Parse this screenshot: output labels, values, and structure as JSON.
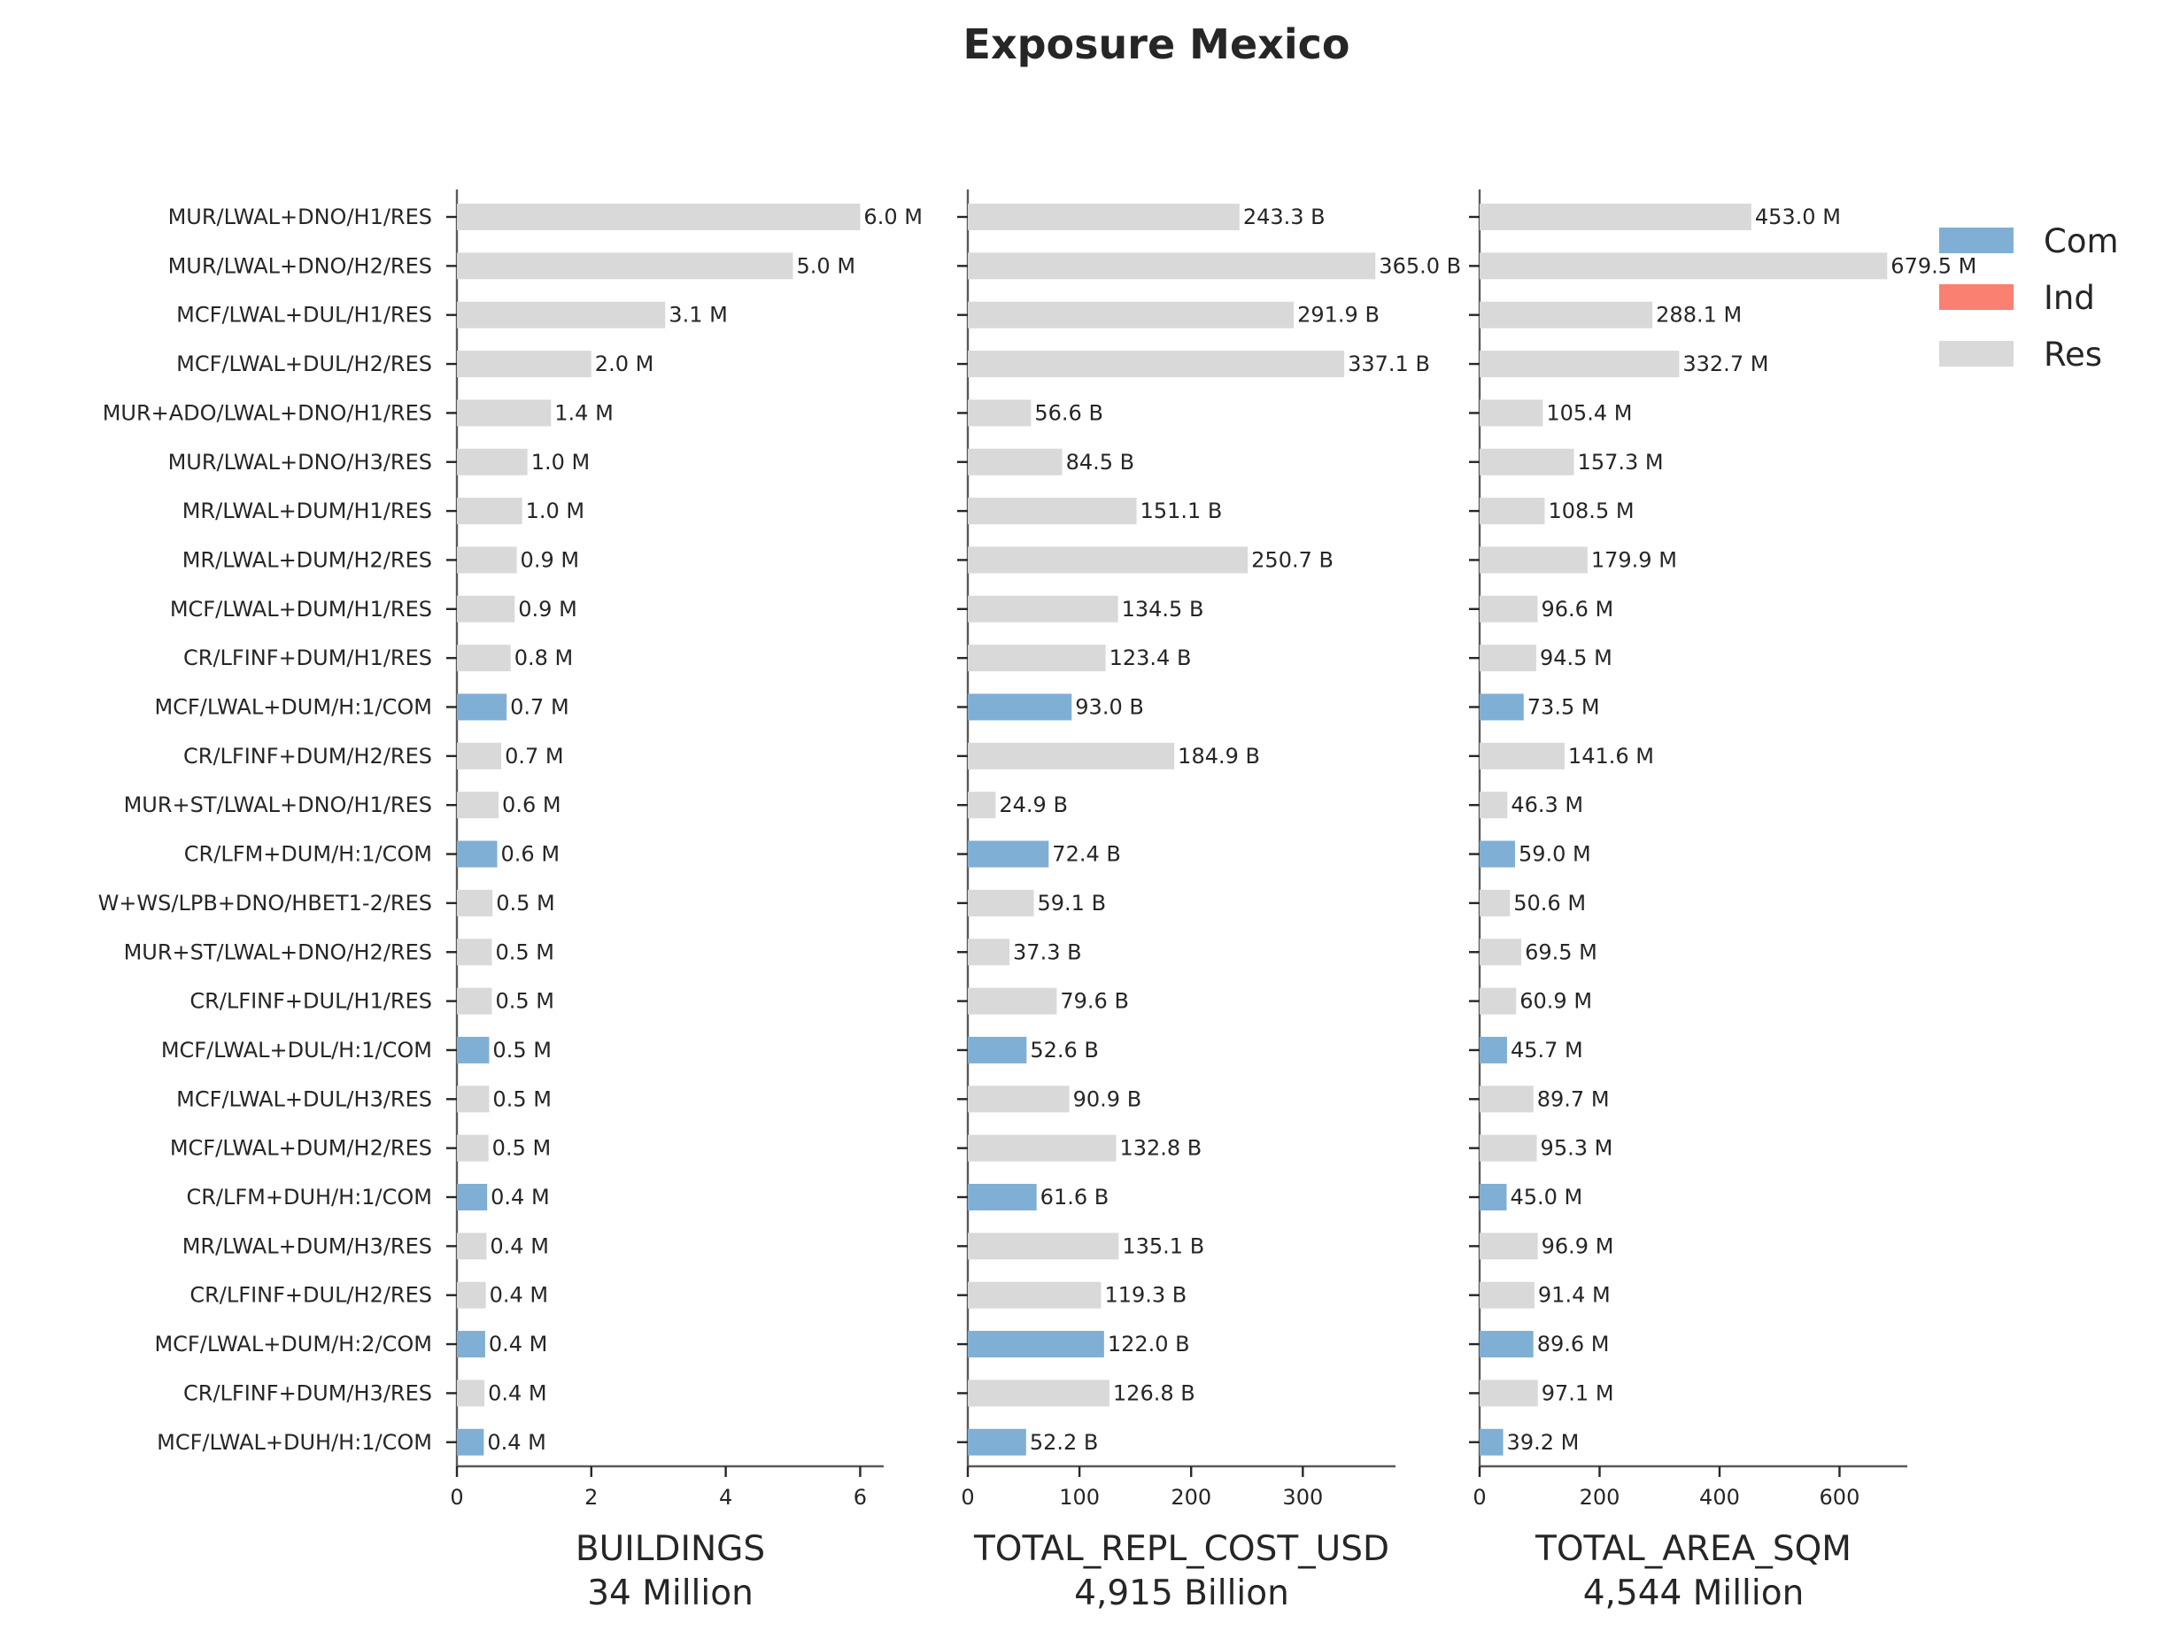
{
  "chart_data": {
    "type": "bar",
    "orientation": "horizontal",
    "title": "Exposure Mexico",
    "categories": [
      "MUR/LWAL+DNO/H1/RES",
      "MUR/LWAL+DNO/H2/RES",
      "MCF/LWAL+DUL/H1/RES",
      "MCF/LWAL+DUL/H2/RES",
      "MUR+ADO/LWAL+DNO/H1/RES",
      "MUR/LWAL+DNO/H3/RES",
      "MR/LWAL+DUM/H1/RES",
      "MR/LWAL+DUM/H2/RES",
      "MCF/LWAL+DUM/H1/RES",
      "CR/LFINF+DUM/H1/RES",
      "MCF/LWAL+DUM/H:1/COM",
      "CR/LFINF+DUM/H2/RES",
      "MUR+ST/LWAL+DNO/H1/RES",
      "CR/LFM+DUM/H:1/COM",
      "W+WS/LPB+DNO/HBET1-2/RES",
      "MUR+ST/LWAL+DNO/H2/RES",
      "CR/LFINF+DUL/H1/RES",
      "MCF/LWAL+DUL/H:1/COM",
      "MCF/LWAL+DUL/H3/RES",
      "MCF/LWAL+DUM/H2/RES",
      "CR/LFM+DUH/H:1/COM",
      "MR/LWAL+DUM/H3/RES",
      "CR/LFINF+DUL/H2/RES",
      "MCF/LWAL+DUM/H:2/COM",
      "CR/LFINF+DUM/H3/RES",
      "MCF/LWAL+DUH/H:1/COM"
    ],
    "occupancy": [
      "Res",
      "Res",
      "Res",
      "Res",
      "Res",
      "Res",
      "Res",
      "Res",
      "Res",
      "Res",
      "Com",
      "Res",
      "Res",
      "Com",
      "Res",
      "Res",
      "Res",
      "Com",
      "Res",
      "Res",
      "Com",
      "Res",
      "Res",
      "Com",
      "Res",
      "Com"
    ],
    "legend": {
      "placement": "top-right",
      "entries": [
        {
          "name": "Com",
          "color": "#7fafd4"
        },
        {
          "name": "Ind",
          "color": "#fa8072"
        },
        {
          "name": "Res",
          "color": "#d9d9d9"
        }
      ]
    },
    "panels": [
      {
        "xlabel": "BUILDINGS",
        "total": "34 Million",
        "xlim": [
          0,
          6.35
        ],
        "xticks": [
          0,
          2,
          4,
          6
        ],
        "values": [
          6.0,
          5.0,
          3.1,
          2.0,
          1.4,
          1.05,
          0.97,
          0.89,
          0.86,
          0.8,
          0.74,
          0.66,
          0.62,
          0.6,
          0.53,
          0.52,
          0.52,
          0.48,
          0.48,
          0.47,
          0.45,
          0.44,
          0.43,
          0.42,
          0.41,
          0.4
        ],
        "labels": [
          "6.0 M",
          "5.0 M",
          "3.1 M",
          "2.0 M",
          "1.4 M",
          "1.0 M",
          "1.0 M",
          "0.9 M",
          "0.9 M",
          "0.8 M",
          "0.7 M",
          "0.7 M",
          "0.6 M",
          "0.6 M",
          "0.5 M",
          "0.5 M",
          "0.5 M",
          "0.5 M",
          "0.5 M",
          "0.5 M",
          "0.4 M",
          "0.4 M",
          "0.4 M",
          "0.4 M",
          "0.4 M",
          "0.4 M"
        ]
      },
      {
        "xlabel": "TOTAL_REPL_COST_USD",
        "total": "4,915 Billion",
        "xlim": [
          0,
          383
        ],
        "xticks": [
          0,
          100,
          200,
          300
        ],
        "values": [
          243.3,
          365.0,
          291.9,
          337.1,
          56.6,
          84.5,
          151.1,
          250.7,
          134.5,
          123.4,
          93.0,
          184.9,
          24.9,
          72.4,
          59.1,
          37.3,
          79.6,
          52.6,
          90.9,
          132.8,
          61.6,
          135.1,
          119.3,
          122.0,
          126.8,
          52.2
        ],
        "labels": [
          "243.3 B",
          "365.0 B",
          "291.9 B",
          "337.1 B",
          "56.6 B",
          "84.5 B",
          "151.1 B",
          "250.7 B",
          "134.5 B",
          "123.4 B",
          "93.0 B",
          "184.9 B",
          "24.9 B",
          "72.4 B",
          "59.1 B",
          "37.3 B",
          "79.6 B",
          "52.6 B",
          "90.9 B",
          "132.8 B",
          "61.6 B",
          "135.1 B",
          "119.3 B",
          "122.0 B",
          "126.8 B",
          "52.2 B"
        ]
      },
      {
        "xlabel": "TOTAL_AREA_SQM",
        "total": "4,544 Million",
        "xlim": [
          0,
          713
        ],
        "xticks": [
          0,
          200,
          400,
          600
        ],
        "values": [
          453.0,
          679.5,
          288.1,
          332.7,
          105.4,
          157.3,
          108.5,
          179.9,
          96.6,
          94.5,
          73.5,
          141.6,
          46.3,
          59.0,
          50.6,
          69.5,
          60.9,
          45.7,
          89.7,
          95.3,
          45.0,
          96.9,
          91.4,
          89.6,
          97.1,
          39.2
        ],
        "labels": [
          "453.0 M",
          "679.5 M",
          "288.1 M",
          "332.7 M",
          "105.4 M",
          "157.3 M",
          "108.5 M",
          "179.9 M",
          "96.6 M",
          "94.5 M",
          "73.5 M",
          "141.6 M",
          "46.3 M",
          "59.0 M",
          "50.6 M",
          "69.5 M",
          "60.9 M",
          "45.7 M",
          "89.7 M",
          "95.3 M",
          "45.0 M",
          "96.9 M",
          "91.4 M",
          "89.6 M",
          "97.1 M",
          "39.2 M"
        ]
      }
    ]
  }
}
